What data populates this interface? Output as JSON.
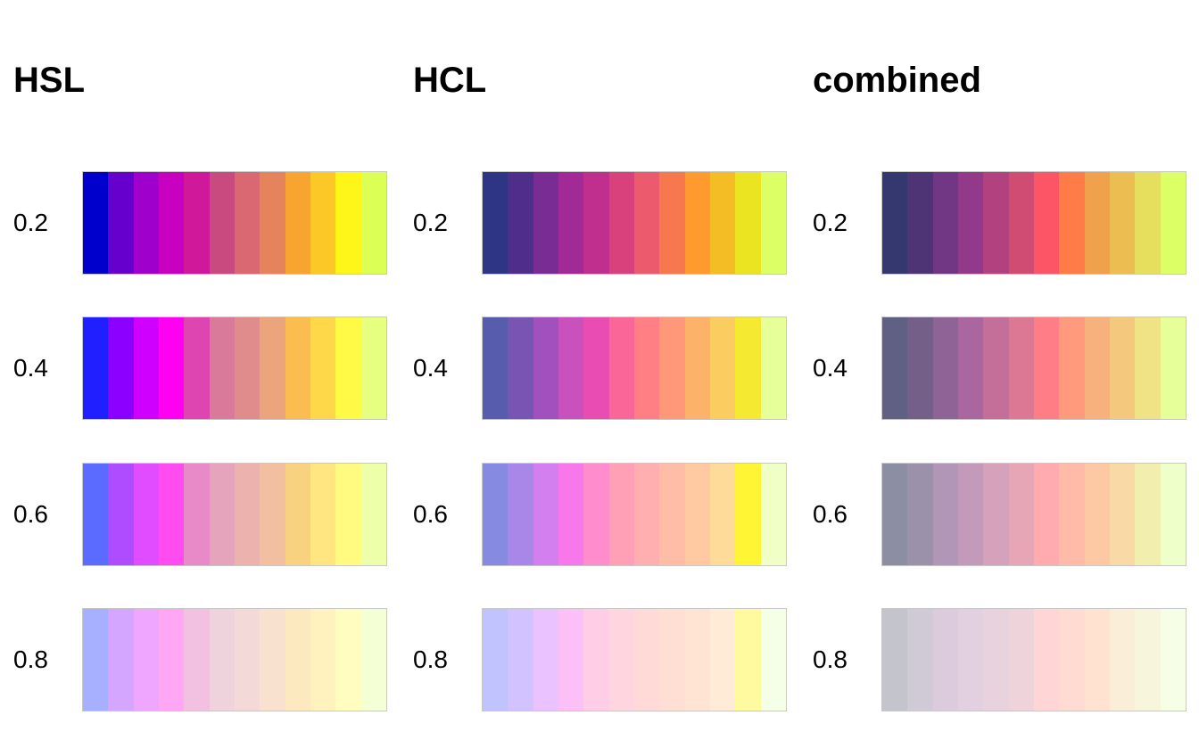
{
  "chart_data": {
    "type": "heatmap",
    "panels": [
      {
        "title": "HSL",
        "rows": [
          {
            "label": "0.2",
            "colors": [
              "#0000cc",
              "#6600cc",
              "#a000cc",
              "#c800c0",
              "#d0199a",
              "#c94a7e",
              "#d96872",
              "#e5845c",
              "#f8a430",
              "#fcc828",
              "#fff619",
              "#dcff55"
            ]
          },
          {
            "label": "0.4",
            "colors": [
              "#1f1fff",
              "#8c00ff",
              "#d000ff",
              "#ff00f0",
              "#de45b0",
              "#d97a9a",
              "#e08c8c",
              "#eca47c",
              "#fcbd50",
              "#ffd84a",
              "#fffa45",
              "#e6ff80"
            ]
          },
          {
            "label": "0.6",
            "colors": [
              "#5c6bff",
              "#b04cff",
              "#e04cff",
              "#ff4cf0",
              "#e88ac8",
              "#e6a3bc",
              "#ebb2ae",
              "#f2c0a0",
              "#f9d280",
              "#ffe680",
              "#fffb80",
              "#eeffaa"
            ]
          },
          {
            "label": "0.8",
            "colors": [
              "#a6b0ff",
              "#d5a6ff",
              "#efa6ff",
              "#ffa6f5",
              "#f2c0e0",
              "#eed3dd",
              "#f3d9d7",
              "#f8e2cf",
              "#fde9bf",
              "#fff2bf",
              "#fffdc0",
              "#f5ffd5"
            ]
          }
        ]
      },
      {
        "title": "HCL",
        "rows": [
          {
            "label": "0.2",
            "colors": [
              "#2e3584",
              "#4e2e8a",
              "#7a2c95",
              "#a12a97",
              "#c02f8d",
              "#d9417c",
              "#ec5a6e",
              "#f7774e",
              "#fe9a2e",
              "#f4bc25",
              "#ebe421",
              "#ddff66"
            ]
          },
          {
            "label": "0.4",
            "colors": [
              "#575cac",
              "#7855b3",
              "#a151be",
              "#c851bd",
              "#e94db2",
              "#fb6698",
              "#ff7f84",
              "#ff9779",
              "#fdb26a",
              "#fbcc5f",
              "#f5e931",
              "#e6ff99"
            ]
          },
          {
            "label": "0.6",
            "colors": [
              "#868ae0",
              "#a887e8",
              "#d47ff0",
              "#f878eb",
              "#ff8ccd",
              "#ffa0b6",
              "#ffafaf",
              "#ffbca7",
              "#ffc9a1",
              "#ffdb99",
              "#fff535",
              "#efffc5"
            ]
          },
          {
            "label": "0.8",
            "colors": [
              "#c1c3ff",
              "#d2c2ff",
              "#eac2ff",
              "#fdc0f6",
              "#ffcde6",
              "#ffd5df",
              "#ffdad7",
              "#ffded4",
              "#ffe4d3",
              "#ffebd6",
              "#fffaa0",
              "#f5ffe6"
            ]
          }
        ]
      },
      {
        "title": "combined",
        "rows": [
          {
            "label": "0.2",
            "colors": [
              "#35386e",
              "#4e3475",
              "#713684",
              "#923a89",
              "#b1417f",
              "#d04c72",
              "#fd5565",
              "#ff7b48",
              "#efa14c",
              "#ecbe52",
              "#e6df5d",
              "#ddff66"
            ]
          },
          {
            "label": "0.4",
            "colors": [
              "#5f6084",
              "#735f88",
              "#8e6497",
              "#aa679f",
              "#c46f9a",
              "#dd7894",
              "#ff7e85",
              "#ff9a7c",
              "#f6b17c",
              "#f5c97d",
              "#efe385",
              "#e6ff99"
            ]
          },
          {
            "label": "0.6",
            "colors": [
              "#8c8fa3",
              "#9c91ab",
              "#b196b7",
              "#c49abb",
              "#d5a1bb",
              "#e7a6b6",
              "#ffabb0",
              "#ffbaa8",
              "#fdc9a5",
              "#f9daa6",
              "#f2efae",
              "#eeffc9"
            ]
          },
          {
            "label": "0.8",
            "colors": [
              "#c3c4cc",
              "#d0cad7",
              "#dbcbdd",
              "#e2cfe0",
              "#e8d2dd",
              "#eed4da",
              "#ffd5d5",
              "#ffdbd2",
              "#ffe2d0",
              "#fbeed8",
              "#f7f6dc",
              "#f6ffe6"
            ]
          }
        ]
      }
    ]
  }
}
